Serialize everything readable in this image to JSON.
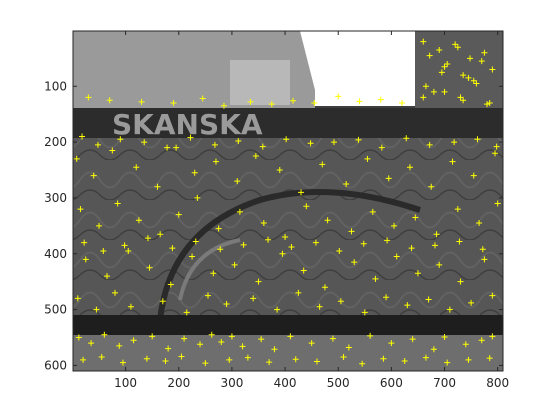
{
  "chart_data": {
    "type": "scatter",
    "title": "",
    "xlabel": "",
    "ylabel": "",
    "xlim": [
      1,
      810
    ],
    "ylim": [
      1,
      610
    ],
    "y_reversed": true,
    "x_ticks": [
      "100",
      "200",
      "300",
      "400",
      "500",
      "600",
      "700",
      "800"
    ],
    "y_ticks": [
      "100",
      "200",
      "300",
      "400",
      "500",
      "600"
    ],
    "image_text": "SKANSKA",
    "marker": "+",
    "marker_color": "#ffff00",
    "axes_color": "#262626",
    "series": [
      {
        "x": [
          12,
          35,
          60,
          88,
          115,
          150,
          180,
          210,
          240,
          262,
          280,
          300,
          320,
          355,
          380,
          410,
          450,
          490,
          520,
          560,
          600,
          640,
          680,
          700,
          740,
          770,
          790,
          20,
          55,
          95,
          140,
          175,
          205,
          250,
          295,
          330,
          370,
          420,
          460,
          510,
          545,
          585,
          625,
          665,
          705,
          745,
          785,
          8,
          40,
          75,
          120,
          160,
          195,
          230,
          270,
          310,
          345,
          390,
          430,
          470,
          515,
          555,
          595,
          635,
          675,
          715,
          755,
          795,
          15,
          50,
          85,
          125,
          165,
          200,
          235,
          275,
          315,
          360,
          400,
          440,
          480,
          525,
          565,
          605,
          645,
          685,
          725,
          765,
          800,
          25,
          65,
          105,
          145,
          185,
          225,
          265,
          305,
          350,
          395,
          435,
          475,
          530,
          570,
          610,
          650,
          690,
          730,
          775,
          10,
          45,
          80,
          110,
          170,
          215,
          255,
          290,
          340,
          385,
          425,
          465,
          505,
          550,
          590,
          630,
          670,
          710,
          750,
          790,
          30,
          70,
          130,
          190,
          245,
          285,
          335,
          375,
          415,
          455,
          500,
          540,
          580,
          620,
          660,
          700,
          735,
          780,
          18,
          48,
          90,
          135,
          178,
          222,
          268,
          312,
          358,
          402,
          448,
          492,
          538,
          582,
          628,
          672,
          718,
          762,
          798,
          22,
          58,
          98,
          142,
          188,
          232,
          278,
          322,
          368,
          412,
          458,
          502,
          548,
          592,
          638,
          682,
          728,
          772,
          660,
          672,
          690,
          705,
          720,
          735,
          748,
          760,
          775,
          790,
          680,
          700,
          725,
          745,
          770,
          665,
          695,
          730,
          755,
          785
        ],
        "y": [
          550,
          560,
          545,
          565,
          555,
          548,
          570,
          552,
          562,
          545,
          558,
          548,
          566,
          553,
          571,
          548,
          560,
          552,
          568,
          547,
          560,
          553,
          571,
          549,
          562,
          555,
          548,
          590,
          585,
          595,
          588,
          592,
          584,
          596,
          590,
          586,
          594,
          589,
          593,
          585,
          597,
          588,
          592,
          586,
          595,
          590,
          587,
          230,
          260,
          215,
          245,
          280,
          210,
          255,
          235,
          270,
          225,
          250,
          290,
          240,
          275,
          230,
          265,
          245,
          280,
          235,
          260,
          220,
          320,
          350,
          310,
          340,
          365,
          330,
          300,
          355,
          325,
          345,
          370,
          315,
          340,
          360,
          325,
          350,
          335,
          365,
          320,
          345,
          310,
          410,
          440,
          395,
          425,
          455,
          405,
          435,
          420,
          450,
          400,
          430,
          460,
          415,
          445,
          405,
          435,
          420,
          450,
          410,
          480,
          500,
          470,
          495,
          485,
          505,
          475,
          490,
          480,
          500,
          470,
          495,
          485,
          505,
          478,
          492,
          482,
          500,
          488,
          475,
          120,
          125,
          128,
          130,
          122,
          135,
          128,
          132,
          126,
          130,
          118,
          127,
          124,
          130,
          120,
          110,
          125,
          132,
          190,
          205,
          195,
          200,
          210,
          192,
          205,
          198,
          208,
          195,
          202,
          200,
          196,
          210,
          193,
          205,
          200,
          195,
          208,
          380,
          395,
          385,
          372,
          390,
          378,
          392,
          384,
          375,
          388,
          380,
          395,
          382,
          376,
          390,
          385,
          378,
          392,
          20,
          45,
          35,
          60,
          25,
          80,
          50,
          95,
          40,
          70,
          110,
          65,
          30,
          85,
          55,
          100,
          75,
          120,
          90,
          130
        ]
      }
    ]
  },
  "colors": {
    "bg_dark": "#3a3a3a",
    "sky": "#ffffff",
    "building": "#8a8a8a",
    "banner": "#2a2a2a",
    "mural": "#4d4d4d",
    "crowd": "#6b6b6b"
  }
}
